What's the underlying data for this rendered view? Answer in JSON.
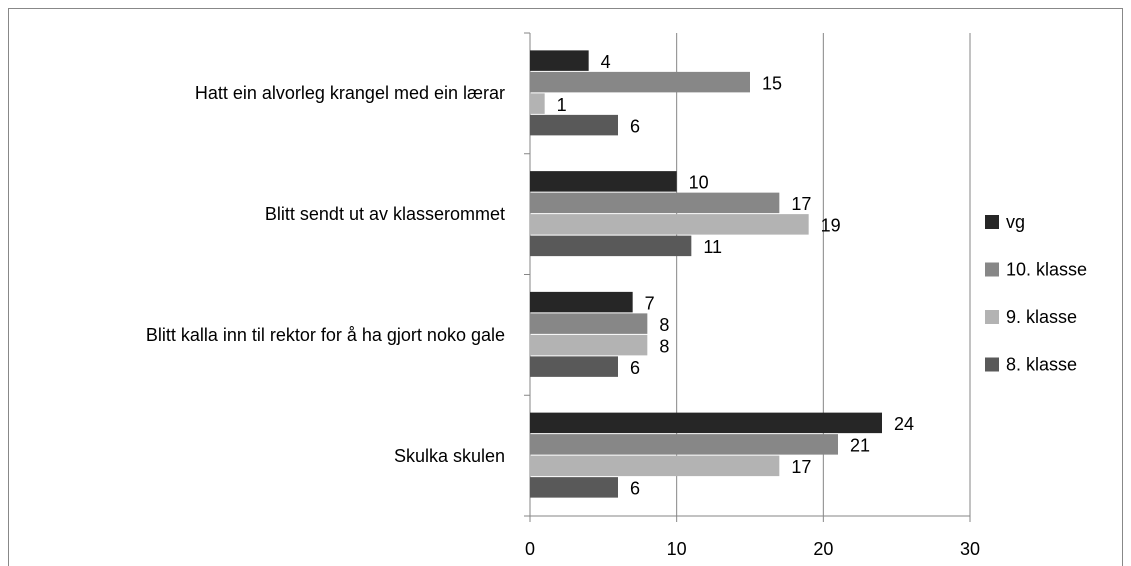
{
  "chart_data": {
    "type": "bar",
    "orientation": "horizontal",
    "categories": [
      "Hatt ein alvorleg krangel med ein lærar",
      "Blitt sendt ut av klasserommet",
      "Blitt kalla inn til rektor for å ha gjort noko gale",
      "Skulka skulen"
    ],
    "series": [
      {
        "name": "vg",
        "color": "#262626",
        "values": [
          4,
          10,
          7,
          24
        ]
      },
      {
        "name": "10. klasse",
        "color": "#878787",
        "values": [
          15,
          17,
          8,
          21
        ]
      },
      {
        "name": "9. klasse",
        "color": "#b3b3b3",
        "values": [
          1,
          19,
          8,
          17
        ]
      },
      {
        "name": "8. klasse",
        "color": "#595959",
        "values": [
          6,
          11,
          6,
          6
        ]
      }
    ],
    "xlim": [
      0,
      30
    ],
    "xticks": [
      0,
      10,
      20,
      30
    ],
    "grid": true,
    "legend": "right"
  }
}
